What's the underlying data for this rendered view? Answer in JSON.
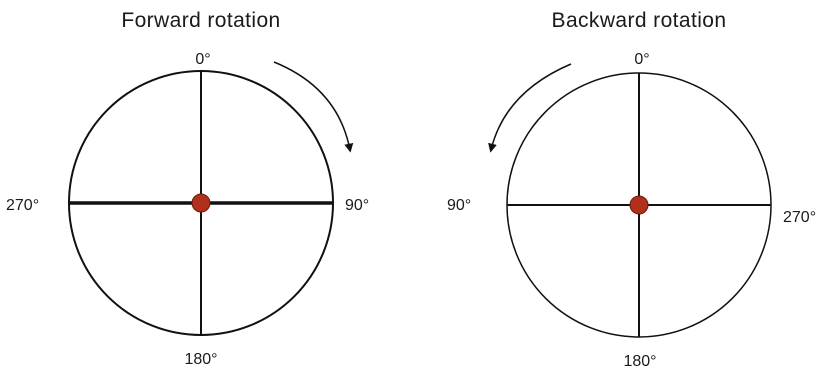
{
  "diagrams": [
    {
      "title": "Forward rotation",
      "labels": {
        "top": "0°",
        "right": "90°",
        "bottom": "180°",
        "left": "270°"
      },
      "arrow_direction": "clockwise"
    },
    {
      "title": "Backward rotation",
      "labels": {
        "top": "0°",
        "right": "270°",
        "bottom": "180°",
        "left": "90°"
      },
      "arrow_direction": "counterclockwise"
    }
  ],
  "colors": {
    "line": "#111111",
    "center_dot": "#b0301c",
    "center_dot_stroke": "#6e1a0c"
  }
}
